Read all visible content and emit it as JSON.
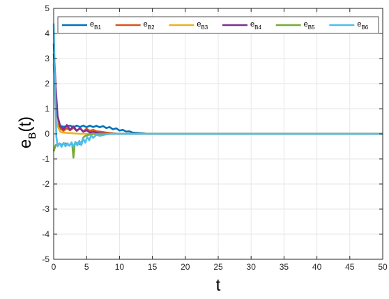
{
  "chart_data": {
    "type": "line",
    "xlabel": "t",
    "ylabel": {
      "main": "e",
      "sub": "B",
      "suffix": "(t)"
    },
    "xlim": [
      0,
      50
    ],
    "ylim": [
      -5,
      5
    ],
    "xticks": [
      0,
      5,
      10,
      15,
      20,
      25,
      30,
      35,
      40,
      45,
      50
    ],
    "yticks": [
      -5,
      -4,
      -3,
      -2,
      -1,
      0,
      1,
      2,
      3,
      4,
      5
    ],
    "grid": true,
    "legend_position": "top",
    "series": [
      {
        "name": "e_B1",
        "label_main": "e",
        "label_sub": "B1",
        "color": "#0072BD",
        "points": [
          [
            0,
            3.2
          ],
          [
            0.3,
            1.6
          ],
          [
            0.6,
            0.6
          ],
          [
            1.0,
            0.32
          ],
          [
            1.5,
            0.28
          ],
          [
            2.0,
            0.3
          ],
          [
            2.5,
            0.33
          ],
          [
            3.0,
            0.26
          ],
          [
            3.5,
            0.33
          ],
          [
            4.0,
            0.27
          ],
          [
            4.5,
            0.33
          ],
          [
            5.0,
            0.26
          ],
          [
            5.5,
            0.33
          ],
          [
            6.0,
            0.27
          ],
          [
            6.5,
            0.32
          ],
          [
            7.0,
            0.26
          ],
          [
            7.5,
            0.31
          ],
          [
            8.0,
            0.23
          ],
          [
            8.5,
            0.27
          ],
          [
            9.0,
            0.18
          ],
          [
            9.5,
            0.22
          ],
          [
            10.0,
            0.13
          ],
          [
            10.5,
            0.16
          ],
          [
            11.0,
            0.09
          ],
          [
            11.5,
            0.1
          ],
          [
            12.0,
            0.05
          ],
          [
            13.0,
            0.03
          ],
          [
            14.0,
            0.01
          ],
          [
            15.0,
            0.0
          ],
          [
            50,
            0.0
          ]
        ]
      },
      {
        "name": "e_B2",
        "label_main": "e",
        "label_sub": "B2",
        "color": "#D95319",
        "points": [
          [
            0,
            2.8
          ],
          [
            0.3,
            1.2
          ],
          [
            0.6,
            0.4
          ],
          [
            1.0,
            0.2
          ],
          [
            1.5,
            0.12
          ],
          [
            2.0,
            0.22
          ],
          [
            2.5,
            0.14
          ],
          [
            3.0,
            0.24
          ],
          [
            3.5,
            0.12
          ],
          [
            4.0,
            0.23
          ],
          [
            4.5,
            0.1
          ],
          [
            5.0,
            0.2
          ],
          [
            5.5,
            0.12
          ],
          [
            6.0,
            0.16
          ],
          [
            6.5,
            0.1
          ],
          [
            7.0,
            0.09
          ],
          [
            8.0,
            0.05
          ],
          [
            9.0,
            0.02
          ],
          [
            10.0,
            0.0
          ],
          [
            50,
            0.0
          ]
        ]
      },
      {
        "name": "e_B3",
        "label_main": "e",
        "label_sub": "B3",
        "color": "#EDB120",
        "points": [
          [
            0,
            3.0
          ],
          [
            0.3,
            1.0
          ],
          [
            0.6,
            0.3
          ],
          [
            1.0,
            0.08
          ],
          [
            1.5,
            0.05
          ],
          [
            2.0,
            0.04
          ],
          [
            2.5,
            0.03
          ],
          [
            3.0,
            0.02
          ],
          [
            4.0,
            0.0
          ],
          [
            50,
            0.0
          ]
        ]
      },
      {
        "name": "e_B4",
        "label_main": "e",
        "label_sub": "B4",
        "color": "#7E2F8E",
        "points": [
          [
            0,
            3.6
          ],
          [
            0.3,
            1.9
          ],
          [
            0.6,
            0.7
          ],
          [
            1.0,
            0.3
          ],
          [
            1.5,
            0.18
          ],
          [
            2.0,
            0.35
          ],
          [
            2.5,
            0.16
          ],
          [
            3.0,
            0.3
          ],
          [
            3.5,
            0.12
          ],
          [
            4.0,
            0.22
          ],
          [
            4.5,
            0.08
          ],
          [
            5.0,
            0.14
          ],
          [
            5.5,
            0.05
          ],
          [
            6.0,
            0.08
          ],
          [
            7.0,
            0.02
          ],
          [
            8.0,
            0.0
          ],
          [
            50,
            0.0
          ]
        ]
      },
      {
        "name": "e_B5",
        "label_main": "e",
        "label_sub": "B5",
        "color": "#77AC30",
        "points": [
          [
            0,
            -0.7
          ],
          [
            0.3,
            -0.45
          ],
          [
            0.8,
            -0.4
          ],
          [
            1.3,
            -0.42
          ],
          [
            1.8,
            -0.38
          ],
          [
            2.3,
            -0.45
          ],
          [
            2.8,
            -0.38
          ],
          [
            3.0,
            -0.95
          ],
          [
            3.2,
            -0.42
          ],
          [
            3.6,
            -0.36
          ],
          [
            4.0,
            -0.42
          ],
          [
            4.3,
            -0.3
          ],
          [
            4.5,
            -0.15
          ],
          [
            4.7,
            -0.1
          ],
          [
            5.0,
            -0.06
          ],
          [
            5.5,
            -0.03
          ],
          [
            6.0,
            -0.01
          ],
          [
            7.0,
            0.0
          ],
          [
            50,
            0.0
          ]
        ]
      },
      {
        "name": "e_B6",
        "label_main": "e",
        "label_sub": "B6",
        "color": "#4DBEEE",
        "points": [
          [
            0,
            4.4
          ],
          [
            0.2,
            2.0
          ],
          [
            0.4,
            -0.1
          ],
          [
            0.6,
            -0.5
          ],
          [
            0.9,
            -0.38
          ],
          [
            1.2,
            -0.52
          ],
          [
            1.5,
            -0.36
          ],
          [
            1.8,
            -0.5
          ],
          [
            2.1,
            -0.38
          ],
          [
            2.4,
            -0.48
          ],
          [
            2.7,
            -0.34
          ],
          [
            3.0,
            -0.52
          ],
          [
            3.3,
            -0.32
          ],
          [
            3.6,
            -0.46
          ],
          [
            3.9,
            -0.28
          ],
          [
            4.2,
            -0.45
          ],
          [
            4.5,
            -0.2
          ],
          [
            4.8,
            -0.35
          ],
          [
            5.1,
            -0.12
          ],
          [
            5.4,
            -0.26
          ],
          [
            5.7,
            -0.06
          ],
          [
            6.0,
            -0.16
          ],
          [
            6.5,
            -0.04
          ],
          [
            7.0,
            -0.08
          ],
          [
            8.0,
            -0.02
          ],
          [
            9.0,
            0.0
          ],
          [
            50,
            0.0
          ]
        ]
      }
    ]
  }
}
